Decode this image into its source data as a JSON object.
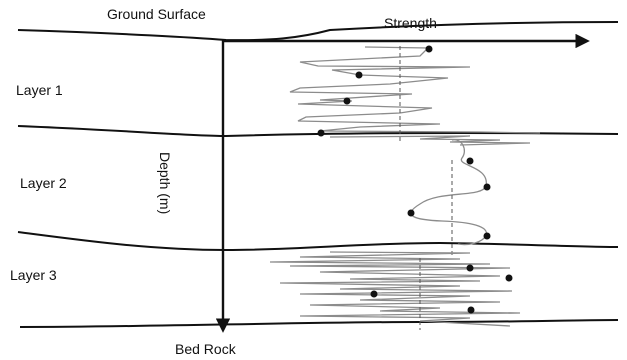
{
  "labels": {
    "ground_surface": "Ground Surface",
    "strength": "Strength",
    "layer_1": "Layer 1",
    "layer_2": "Layer 2",
    "layer_3": "Layer 3",
    "depth": "Depth (m)",
    "bed_rock": "Bed Rock"
  },
  "colors": {
    "boundary": "#111111",
    "profile": "#8c8c8c",
    "mean_line": "#555555"
  }
}
